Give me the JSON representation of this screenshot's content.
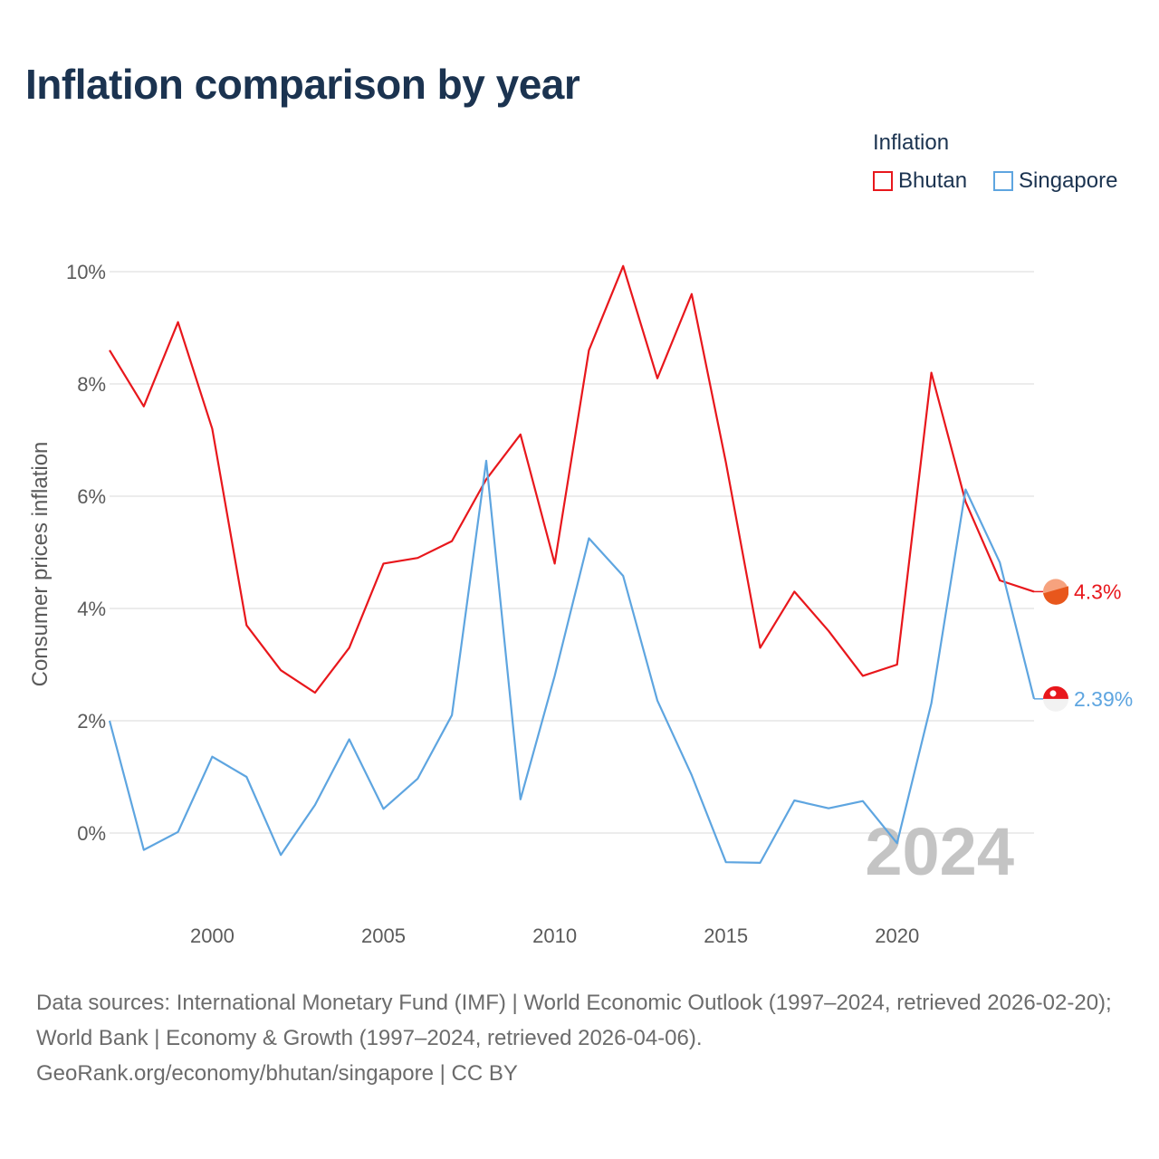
{
  "title": "Inflation comparison by year",
  "legend": {
    "title": "Inflation",
    "items": [
      {
        "label": "Bhutan",
        "color": "#e8171c"
      },
      {
        "label": "Singapore",
        "color": "#5ea5e0"
      }
    ]
  },
  "year_watermark": "2024",
  "footer": {
    "line1": "Data sources: International Monetary Fund (IMF) | World Economic Outlook (1997–2024, retrieved 2026-02-20); World Bank | Economy & Growth (1997–2024, retrieved 2026-04-06).",
    "line2": "GeoRank.org/economy/bhutan/singapore | CC BY"
  },
  "chart_data": {
    "type": "line",
    "title": "Inflation comparison by year",
    "xlabel": "",
    "ylabel": "Consumer prices inflation",
    "x": [
      1997,
      1998,
      1999,
      2000,
      2001,
      2002,
      2003,
      2004,
      2005,
      2006,
      2007,
      2008,
      2009,
      2010,
      2011,
      2012,
      2013,
      2014,
      2015,
      2016,
      2017,
      2018,
      2019,
      2020,
      2021,
      2022,
      2023,
      2024
    ],
    "xlim": [
      1997,
      2024
    ],
    "ylim": [
      -1.5,
      10.5
    ],
    "x_ticks": [
      2000,
      2005,
      2010,
      2015,
      2020
    ],
    "y_ticks": [
      0,
      2,
      4,
      6,
      8,
      10
    ],
    "y_tick_labels": [
      "0%",
      "2%",
      "4%",
      "6%",
      "8%",
      "10%"
    ],
    "grid": true,
    "legend_position": "top-right",
    "series": [
      {
        "name": "Bhutan",
        "color": "#e8171c",
        "end_label": "4.3%",
        "values": [
          8.6,
          7.6,
          9.1,
          7.2,
          3.7,
          2.9,
          2.5,
          3.3,
          4.8,
          4.9,
          5.2,
          6.3,
          7.1,
          4.8,
          8.6,
          10.1,
          8.1,
          9.6,
          6.6,
          3.3,
          4.3,
          3.6,
          2.8,
          3.0,
          8.2,
          5.9,
          4.5,
          4.3
        ]
      },
      {
        "name": "Singapore",
        "color": "#5ea5e0",
        "end_label": "2.39%",
        "values": [
          2.0,
          -0.3,
          0.02,
          1.36,
          1.0,
          -0.39,
          0.5,
          1.67,
          0.43,
          0.97,
          2.1,
          6.63,
          0.6,
          2.8,
          5.25,
          4.58,
          2.36,
          1.03,
          -0.52,
          -0.53,
          0.58,
          0.44,
          0.57,
          -0.18,
          2.31,
          6.12,
          4.82,
          2.39
        ]
      }
    ]
  }
}
